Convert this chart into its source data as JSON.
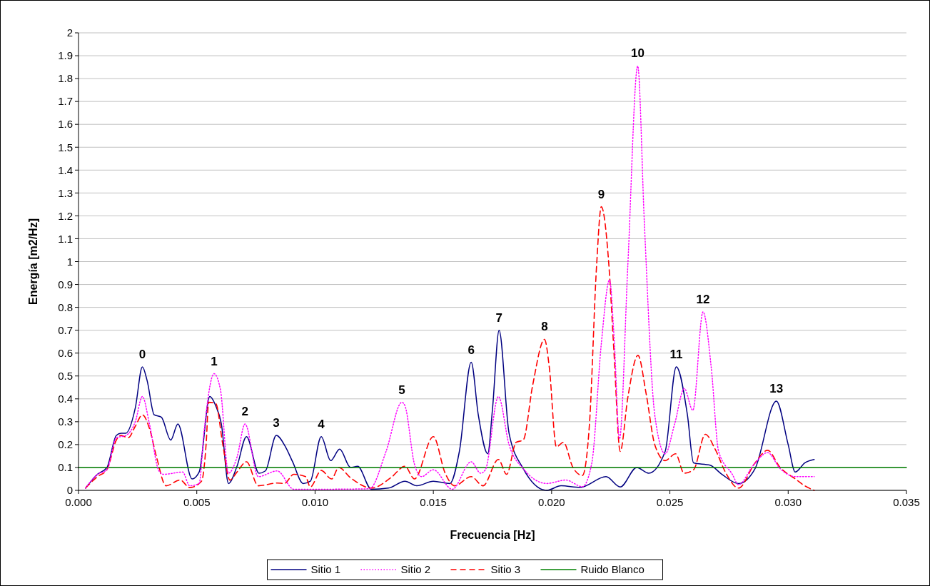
{
  "chart_data": {
    "type": "line",
    "xlabel": "Frecuencia [Hz]",
    "ylabel": "Energía [m2/Hz]",
    "xlim": [
      0,
      0.035
    ],
    "ylim": [
      0,
      2
    ],
    "xticks": [
      {
        "value": 0,
        "label": "0.000"
      },
      {
        "value": 0.005,
        "label": "0.005"
      },
      {
        "value": 0.01,
        "label": "0.010"
      },
      {
        "value": 0.015,
        "label": "0.015"
      },
      {
        "value": 0.02,
        "label": "0.020"
      },
      {
        "value": 0.025,
        "label": "0.025"
      },
      {
        "value": 0.03,
        "label": "0.030"
      },
      {
        "value": 0.035,
        "label": "0.035"
      }
    ],
    "yticks": [
      0,
      0.1,
      0.2,
      0.3,
      0.4,
      0.5,
      0.6,
      0.7,
      0.8,
      0.9,
      1,
      1.1,
      1.2,
      1.3,
      1.4,
      1.5,
      1.6,
      1.7,
      1.8,
      1.9,
      2
    ],
    "grid": "y",
    "legend": "bottom",
    "marker": "none",
    "series": [
      {
        "name": "Sitio 1",
        "color": "#000080",
        "line_style": "solid",
        "x": [
          0.0003,
          0.0008,
          0.0012,
          0.0016,
          0.0018,
          0.002,
          0.0024,
          0.0027,
          0.0029,
          0.0032,
          0.0035,
          0.0039,
          0.0042,
          0.0048,
          0.0051,
          0.00555,
          0.0058,
          0.00604,
          0.00634,
          0.0067,
          0.0071,
          0.00763,
          0.0079,
          0.00836,
          0.00875,
          0.00905,
          0.0095,
          0.0098,
          0.01026,
          0.01066,
          0.01104,
          0.0115,
          0.0118,
          0.01238,
          0.0131,
          0.0138,
          0.0143,
          0.015,
          0.0157,
          0.0161,
          0.0166,
          0.0169,
          0.0173,
          0.0175,
          0.01778,
          0.0182,
          0.0188,
          0.0198,
          0.0204,
          0.0212,
          0.0223,
          0.0229,
          0.0236,
          0.0241,
          0.0248,
          0.02527,
          0.02574,
          0.026,
          0.0267,
          0.0272,
          0.0279,
          0.0286,
          0.0295,
          0.03,
          0.0303,
          0.0307,
          0.0311
        ],
        "values": [
          0.01,
          0.07,
          0.1,
          0.24,
          0.25,
          0.25,
          0.36,
          0.54,
          0.48,
          0.33,
          0.32,
          0.22,
          0.29,
          0.05,
          0.08,
          0.41,
          0.37,
          0.29,
          0.03,
          0.105,
          0.235,
          0.075,
          0.085,
          0.24,
          0.19,
          0.125,
          0.03,
          0.04,
          0.235,
          0.13,
          0.18,
          0.1,
          0.105,
          0.005,
          0.01,
          0.04,
          0.02,
          0.04,
          0.03,
          0.17,
          0.56,
          0.33,
          0.16,
          0.355,
          0.7,
          0.25,
          0.095,
          0.0,
          0.02,
          0.013,
          0.06,
          0.015,
          0.1,
          0.075,
          0.17,
          0.54,
          0.33,
          0.12,
          0.11,
          0.07,
          0.03,
          0.095,
          0.39,
          0.2,
          0.08,
          0.12,
          0.135
        ]
      },
      {
        "name": "Sitio 2",
        "color": "#ff00ff",
        "line_style": "dotted",
        "x": [
          0.0003,
          0.0008,
          0.0012,
          0.0016,
          0.002,
          0.0024,
          0.0027,
          0.003,
          0.0034,
          0.0036,
          0.0044,
          0.0047,
          0.0051,
          0.0053,
          0.00573,
          0.006,
          0.00634,
          0.0067,
          0.00704,
          0.0076,
          0.0084,
          0.0091,
          0.0105,
          0.0118,
          0.0123,
          0.013,
          0.01367,
          0.0138,
          0.0142,
          0.0145,
          0.015,
          0.0158,
          0.0166,
          0.017,
          0.0172,
          0.01775,
          0.0182,
          0.0188,
          0.0198,
          0.0206,
          0.0213,
          0.0217,
          0.0221,
          0.02245,
          0.02265,
          0.02287,
          0.02322,
          0.02364,
          0.02392,
          0.02436,
          0.0248,
          0.0252,
          0.02561,
          0.02597,
          0.0264,
          0.02675,
          0.02706,
          0.02764,
          0.0279,
          0.02853,
          0.02913,
          0.02966,
          0.0303,
          0.0311
        ],
        "values": [
          0.01,
          0.07,
          0.09,
          0.23,
          0.24,
          0.3,
          0.41,
          0.29,
          0.085,
          0.07,
          0.08,
          0.02,
          0.03,
          0.25,
          0.51,
          0.44,
          0.075,
          0.145,
          0.29,
          0.06,
          0.085,
          0.005,
          0.005,
          0.006,
          0.007,
          0.17,
          0.385,
          0.37,
          0.115,
          0.06,
          0.09,
          0.005,
          0.125,
          0.075,
          0.09,
          0.41,
          0.2,
          0.095,
          0.03,
          0.045,
          0.016,
          0.12,
          0.64,
          0.92,
          0.65,
          0.225,
          0.98,
          1.855,
          1.17,
          0.33,
          0.16,
          0.29,
          0.445,
          0.35,
          0.78,
          0.535,
          0.17,
          0.07,
          0.025,
          0.11,
          0.165,
          0.095,
          0.06,
          0.06
        ]
      },
      {
        "name": "Sitio 3",
        "color": "#ff0000",
        "line_style": "dashed",
        "x": [
          0.0003,
          0.0008,
          0.0012,
          0.0016,
          0.0018,
          0.0021,
          0.0024,
          0.0027,
          0.003,
          0.0033,
          0.0037,
          0.0043,
          0.0047,
          0.0052,
          0.0054,
          0.0055,
          0.0058,
          0.0061,
          0.0064,
          0.0067,
          0.0071,
          0.0076,
          0.0084,
          0.0087,
          0.0091,
          0.0096,
          0.0098,
          0.01026,
          0.0107,
          0.011,
          0.0115,
          0.0124,
          0.0132,
          0.0138,
          0.0142,
          0.015,
          0.0155,
          0.0159,
          0.0166,
          0.0171,
          0.01775,
          0.0181,
          0.0185,
          0.0188,
          0.0192,
          0.0197,
          0.0199,
          0.0202,
          0.0205,
          0.0209,
          0.0213,
          0.0216,
          0.0219,
          0.0221,
          0.02241,
          0.02263,
          0.0229,
          0.02322,
          0.02365,
          0.024,
          0.02436,
          0.0248,
          0.02524,
          0.0256,
          0.026,
          0.0265,
          0.02689,
          0.02737,
          0.0279,
          0.0286,
          0.02913,
          0.02966,
          0.0303,
          0.0307,
          0.0311
        ],
        "values": [
          0.01,
          0.06,
          0.09,
          0.22,
          0.24,
          0.23,
          0.28,
          0.33,
          0.27,
          0.145,
          0.02,
          0.045,
          0.012,
          0.04,
          0.21,
          0.385,
          0.38,
          0.2,
          0.045,
          0.08,
          0.125,
          0.02,
          0.032,
          0.03,
          0.07,
          0.06,
          0.015,
          0.087,
          0.05,
          0.1,
          0.055,
          0.01,
          0.055,
          0.105,
          0.05,
          0.235,
          0.075,
          0.02,
          0.06,
          0.02,
          0.135,
          0.07,
          0.21,
          0.22,
          0.46,
          0.66,
          0.54,
          0.19,
          0.21,
          0.1,
          0.065,
          0.29,
          0.98,
          1.24,
          1.0,
          0.615,
          0.17,
          0.405,
          0.59,
          0.42,
          0.2,
          0.13,
          0.16,
          0.075,
          0.09,
          0.245,
          0.185,
          0.075,
          0.01,
          0.12,
          0.175,
          0.1,
          0.05,
          0.02,
          0.0
        ]
      },
      {
        "name": "Ruido Blanco",
        "color": "#008000",
        "line_style": "solid",
        "x": [
          0,
          0.035
        ],
        "values": [
          0.1,
          0.1
        ]
      }
    ],
    "annotations": [
      {
        "text": "0",
        "x": 0.0027,
        "y": 0.54
      },
      {
        "text": "1",
        "x": 0.00573,
        "y": 0.51
      },
      {
        "text": "2",
        "x": 0.00704,
        "y": 0.29
      },
      {
        "text": "3",
        "x": 0.00836,
        "y": 0.24
      },
      {
        "text": "4",
        "x": 0.01026,
        "y": 0.235
      },
      {
        "text": "5",
        "x": 0.01367,
        "y": 0.385
      },
      {
        "text": "6",
        "x": 0.0166,
        "y": 0.56
      },
      {
        "text": "7",
        "x": 0.01778,
        "y": 0.7
      },
      {
        "text": "8",
        "x": 0.0197,
        "y": 0.66
      },
      {
        "text": "9",
        "x": 0.0221,
        "y": 1.24
      },
      {
        "text": "10",
        "x": 0.02364,
        "y": 1.855
      },
      {
        "text": "11",
        "x": 0.02527,
        "y": 0.54
      },
      {
        "text": "12",
        "x": 0.0264,
        "y": 0.78
      },
      {
        "text": "13",
        "x": 0.0295,
        "y": 0.39
      }
    ]
  }
}
